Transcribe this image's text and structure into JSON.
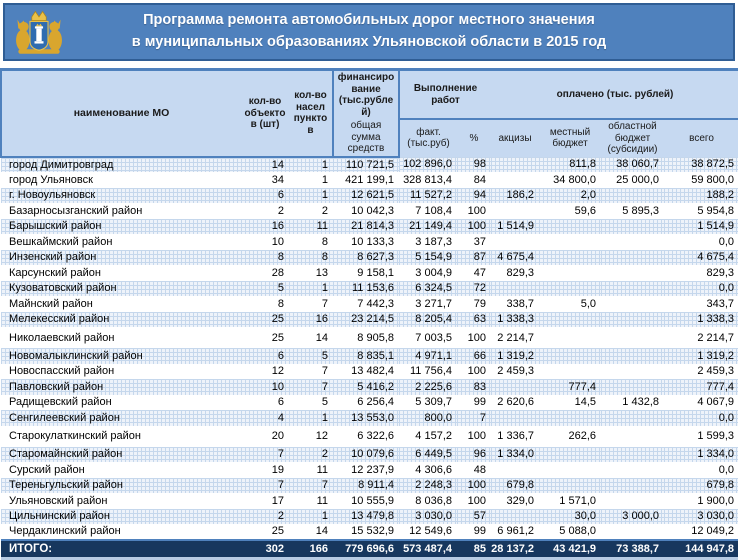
{
  "title": {
    "line1": "Программа ремонта автомобильных дорог местного значения",
    "line2": "в муниципальных образованиях Ульяновской области в 2015 год"
  },
  "colors": {
    "banner-bg": "#4f81bd",
    "banner-border": "#2f5d94",
    "header-bg": "#c6d9f1",
    "accent": "#4f81bd",
    "stripe-bg": "#eef3fa",
    "stripe-line": "#c5d7ec",
    "totals-bg": "#17375e",
    "totals-underline": "#b8cce4",
    "crest-gold": "#d9a62e",
    "crest-gold-light": "#e8c14a",
    "crest-blue": "#2f6cb0"
  },
  "table": {
    "headers": {
      "name": "наименование МО",
      "objects": "кол-во объектов (шт)",
      "settlements": "кол-во насел пунктов",
      "financing": "финансирование (тыс.рублей)",
      "financing_sub": "общая сумма средств",
      "works": "Выполнение работ",
      "works_fact": "факт. (тыс.руб)",
      "works_pct": "%",
      "paid": "оплачено (тыс. рублей)",
      "paid_excise": "акцизы",
      "paid_local": "местный бюджет",
      "paid_regional": "областной бюджет (субсидии)",
      "paid_total": "всего"
    },
    "rows": [
      [
        "город Димитровград",
        "14",
        "1",
        "110 721,5",
        "102 896,0",
        "98",
        "",
        "811,8",
        "38 060,7",
        "38 872,5"
      ],
      [
        "город Ульяновск",
        "34",
        "1",
        "421 199,1",
        "328 813,4",
        "84",
        "",
        "34 800,0",
        "25 000,0",
        "59 800,0"
      ],
      [
        "г. Новоульяновск",
        "6",
        "1",
        "12 621,5",
        "11 527,2",
        "94",
        "186,2",
        "2,0",
        "",
        "188,2"
      ],
      [
        "Базарносызганский район",
        "2",
        "2",
        "10 042,3",
        "7 108,4",
        "100",
        "",
        "59,6",
        "5 895,3",
        "5 954,8"
      ],
      [
        "Барышский район",
        "16",
        "11",
        "21 814,3",
        "21 149,4",
        "100",
        "1 514,9",
        "",
        "",
        "1 514,9"
      ],
      [
        "Вешкаймский район",
        "10",
        "8",
        "10 133,3",
        "3 187,3",
        "37",
        "",
        "",
        "",
        "0,0"
      ],
      [
        "Инзенский район",
        "8",
        "8",
        "8 627,3",
        "5 154,9",
        "87",
        "4 675,4",
        "",
        "",
        "4 675,4"
      ],
      [
        "Карсунский район",
        "28",
        "13",
        "9 158,1",
        "3 004,9",
        "47",
        "829,3",
        "",
        "",
        "829,3"
      ],
      [
        "Кузоватовский район",
        "5",
        "1",
        "11 153,6",
        "6 324,5",
        "72",
        "",
        "",
        "",
        "0,0"
      ],
      [
        "Майнский район",
        "8",
        "7",
        "7 442,3",
        "3 271,7",
        "79",
        "338,7",
        "5,0",
        "",
        "343,7"
      ],
      [
        "Мелекесский район",
        "25",
        "16",
        "23 214,5",
        "8 205,4",
        "63",
        "1 338,3",
        "",
        "",
        "1 338,3"
      ],
      [
        "Николаевский район",
        "25",
        "14",
        "8 905,8",
        "7 003,5",
        "100",
        "2 214,7",
        "",
        "",
        "2 214,7"
      ],
      [
        "Новомалыклинский район",
        "6",
        "5",
        "8 835,1",
        "4 971,1",
        "66",
        "1 319,2",
        "",
        "",
        "1 319,2"
      ],
      [
        "Новоспасский район",
        "12",
        "7",
        "13 482,4",
        "11 756,4",
        "100",
        "2 459,3",
        "",
        "",
        "2 459,3"
      ],
      [
        "Павловский район",
        "10",
        "7",
        "5 416,2",
        "2 225,6",
        "83",
        "",
        "777,4",
        "",
        "777,4"
      ],
      [
        "Радищевский район",
        "6",
        "5",
        "6 256,4",
        "5 309,7",
        "99",
        "2 620,6",
        "14,5",
        "1 432,8",
        "4 067,9"
      ],
      [
        "Сенгилеевский район",
        "4",
        "1",
        "13 553,0",
        "800,0",
        "7",
        "",
        "",
        "",
        "0,0"
      ],
      [
        "Старокулаткинский район",
        "20",
        "12",
        "6 322,6",
        "4 157,2",
        "100",
        "1 336,7",
        "262,6",
        "",
        "1 599,3"
      ],
      [
        "Старомайнский район",
        "7",
        "2",
        "10 079,6",
        "6 449,5",
        "96",
        "1 334,0",
        "",
        "",
        "1 334,0"
      ],
      [
        "Сурский район",
        "19",
        "11",
        "12 237,9",
        "4 306,6",
        "48",
        "",
        "",
        "",
        "0,0"
      ],
      [
        "Тереньгульский район",
        "7",
        "7",
        "8 911,4",
        "2 248,3",
        "100",
        "679,8",
        "",
        "",
        "679,8"
      ],
      [
        "Ульяновский район",
        "17",
        "11",
        "10 555,9",
        "8 036,8",
        "100",
        "329,0",
        "1 571,0",
        "",
        "1 900,0"
      ],
      [
        "Цильнинский район",
        "2",
        "1",
        "13 479,8",
        "3 030,0",
        "57",
        "",
        "30,0",
        "3 000,0",
        "3 030,0"
      ],
      [
        "Чердаклинский район",
        "25",
        "14",
        "15 532,9",
        "12 549,6",
        "99",
        "6 961,2",
        "5 088,0",
        "",
        "12 049,2"
      ]
    ],
    "total_row": [
      "ИТОГО:",
      "302",
      "166",
      "779 696,6",
      "573 487,4",
      "85",
      "28 137,2",
      "43 421,9",
      "73 388,7",
      "144 947,8"
    ]
  }
}
